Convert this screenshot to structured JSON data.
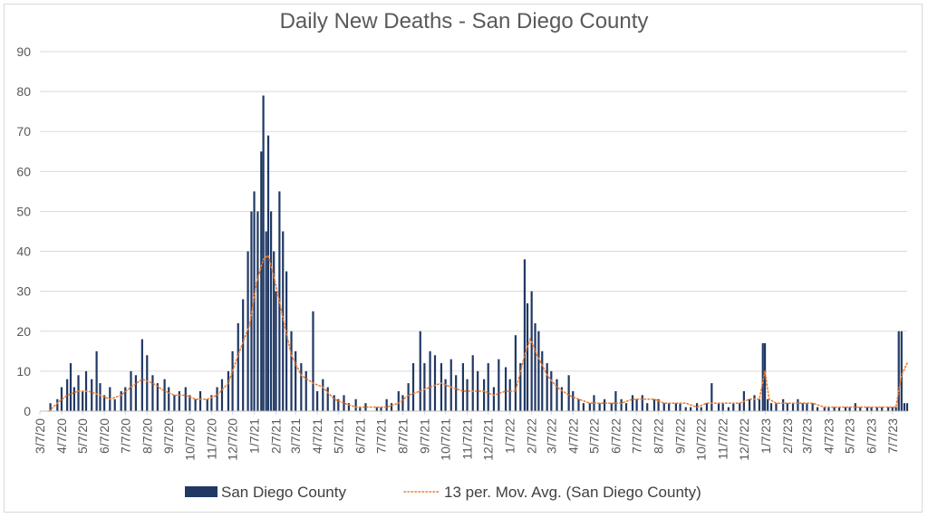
{
  "chart_data": {
    "type": "bar",
    "title": "Daily New Deaths - San Diego County",
    "ylim": [
      0,
      90
    ],
    "yticks": [
      0,
      10,
      20,
      30,
      40,
      50,
      60,
      70,
      80,
      90
    ],
    "x_start": "3/7/20",
    "x_end": "7/28/23",
    "x_tick_labels": [
      "3/7/20",
      "4/7/20",
      "5/7/20",
      "6/7/20",
      "7/7/20",
      "8/7/20",
      "9/7/20",
      "10/7/20",
      "11/7/20",
      "12/7/20",
      "1/7/21",
      "2/7/21",
      "3/7/21",
      "4/7/21",
      "5/7/21",
      "6/7/21",
      "7/7/21",
      "8/7/21",
      "9/7/21",
      "10/7/21",
      "11/7/21",
      "12/7/21",
      "1/7/22",
      "2/7/22",
      "3/7/22",
      "4/7/22",
      "5/7/22",
      "6/7/22",
      "7/7/22",
      "8/7/22",
      "9/7/22",
      "10/7/22",
      "11/7/22",
      "12/7/22",
      "1/7/23",
      "2/7/23",
      "3/7/23",
      "4/7/23",
      "5/7/23",
      "6/7/23",
      "7/7/23"
    ],
    "grid": true,
    "legend_position": "bottom",
    "colors": {
      "bars": "#203864",
      "moving_average": "#ED7D31",
      "grid": "#d9d9d9",
      "text": "#595959"
    },
    "series": [
      {
        "name": "San Diego County",
        "type": "bar",
        "points": [
          [
            "3/7/20",
            0
          ],
          [
            "3/22/20",
            2
          ],
          [
            "4/1/20",
            3
          ],
          [
            "4/7/20",
            6
          ],
          [
            "4/15/20",
            8
          ],
          [
            "4/20/20",
            12
          ],
          [
            "4/25/20",
            6
          ],
          [
            "5/1/20",
            9
          ],
          [
            "5/7/20",
            5
          ],
          [
            "5/12/20",
            10
          ],
          [
            "5/20/20",
            8
          ],
          [
            "5/27/20",
            15
          ],
          [
            "6/1/20",
            7
          ],
          [
            "6/7/20",
            4
          ],
          [
            "6/15/20",
            6
          ],
          [
            "6/22/20",
            3
          ],
          [
            "7/1/20",
            5
          ],
          [
            "7/7/20",
            6
          ],
          [
            "7/15/20",
            10
          ],
          [
            "7/22/20",
            9
          ],
          [
            "7/31/20",
            18
          ],
          [
            "8/7/20",
            14
          ],
          [
            "8/15/20",
            9
          ],
          [
            "8/22/20",
            7
          ],
          [
            "9/1/20",
            8
          ],
          [
            "9/7/20",
            6
          ],
          [
            "9/15/20",
            4
          ],
          [
            "9/22/20",
            5
          ],
          [
            "10/1/20",
            6
          ],
          [
            "10/7/20",
            4
          ],
          [
            "10/15/20",
            3
          ],
          [
            "10/22/20",
            5
          ],
          [
            "11/1/20",
            3
          ],
          [
            "11/7/20",
            4
          ],
          [
            "11/15/20",
            6
          ],
          [
            "11/22/20",
            8
          ],
          [
            "12/1/20",
            10
          ],
          [
            "12/7/20",
            15
          ],
          [
            "12/15/20",
            22
          ],
          [
            "12/22/20",
            28
          ],
          [
            "12/29/20",
            40
          ],
          [
            "1/3/21",
            50
          ],
          [
            "1/7/21",
            55
          ],
          [
            "1/12/21",
            50
          ],
          [
            "1/17/21",
            65
          ],
          [
            "1/20/21",
            79
          ],
          [
            "1/24/21",
            45
          ],
          [
            "1/27/21",
            69
          ],
          [
            "1/31/21",
            50
          ],
          [
            "2/4/21",
            40
          ],
          [
            "2/7/21",
            30
          ],
          [
            "2/12/21",
            55
          ],
          [
            "2/17/21",
            45
          ],
          [
            "2/22/21",
            35
          ],
          [
            "3/1/21",
            20
          ],
          [
            "3/7/21",
            15
          ],
          [
            "3/15/21",
            12
          ],
          [
            "3/22/21",
            10
          ],
          [
            "4/1/21",
            25
          ],
          [
            "4/7/21",
            5
          ],
          [
            "4/15/21",
            8
          ],
          [
            "4/22/21",
            6
          ],
          [
            "5/1/21",
            4
          ],
          [
            "5/7/21",
            3
          ],
          [
            "5/15/21",
            4
          ],
          [
            "5/22/21",
            2
          ],
          [
            "6/1/21",
            3
          ],
          [
            "6/7/21",
            1
          ],
          [
            "6/15/21",
            2
          ],
          [
            "6/22/21",
            0
          ],
          [
            "7/1/21",
            1
          ],
          [
            "7/7/21",
            1
          ],
          [
            "7/15/21",
            3
          ],
          [
            "7/22/21",
            2
          ],
          [
            "8/1/21",
            5
          ],
          [
            "8/7/21",
            4
          ],
          [
            "8/15/21",
            7
          ],
          [
            "8/22/21",
            12
          ],
          [
            "9/1/21",
            20
          ],
          [
            "9/7/21",
            12
          ],
          [
            "9/15/21",
            15
          ],
          [
            "9/22/21",
            14
          ],
          [
            "10/1/21",
            12
          ],
          [
            "10/7/21",
            8
          ],
          [
            "10/15/21",
            13
          ],
          [
            "10/22/21",
            9
          ],
          [
            "11/1/21",
            12
          ],
          [
            "11/7/21",
            8
          ],
          [
            "11/15/21",
            14
          ],
          [
            "11/22/21",
            10
          ],
          [
            "12/1/21",
            8
          ],
          [
            "12/7/21",
            12
          ],
          [
            "12/15/21",
            6
          ],
          [
            "12/22/21",
            13
          ],
          [
            "1/1/22",
            11
          ],
          [
            "1/7/22",
            8
          ],
          [
            "1/15/22",
            19
          ],
          [
            "1/22/22",
            12
          ],
          [
            "1/28/22",
            38
          ],
          [
            "2/1/22",
            27
          ],
          [
            "2/7/22",
            30
          ],
          [
            "2/12/22",
            22
          ],
          [
            "2/17/22",
            20
          ],
          [
            "2/22/22",
            15
          ],
          [
            "3/1/22",
            12
          ],
          [
            "3/7/22",
            10
          ],
          [
            "3/15/22",
            8
          ],
          [
            "3/22/22",
            6
          ],
          [
            "4/1/22",
            9
          ],
          [
            "4/7/22",
            5
          ],
          [
            "4/15/22",
            3
          ],
          [
            "4/22/22",
            2
          ],
          [
            "5/1/22",
            2
          ],
          [
            "5/7/22",
            4
          ],
          [
            "5/15/22",
            2
          ],
          [
            "5/22/22",
            3
          ],
          [
            "6/1/22",
            2
          ],
          [
            "6/7/22",
            5
          ],
          [
            "6/15/22",
            3
          ],
          [
            "6/22/22",
            2
          ],
          [
            "7/1/22",
            4
          ],
          [
            "7/7/22",
            3
          ],
          [
            "7/15/22",
            4
          ],
          [
            "7/22/22",
            2
          ],
          [
            "8/1/22",
            3
          ],
          [
            "8/7/22",
            3
          ],
          [
            "8/15/22",
            2
          ],
          [
            "8/22/22",
            2
          ],
          [
            "9/1/22",
            2
          ],
          [
            "9/7/22",
            2
          ],
          [
            "9/15/22",
            1
          ],
          [
            "9/22/22",
            1
          ],
          [
            "10/1/22",
            2
          ],
          [
            "10/7/22",
            1
          ],
          [
            "10/15/22",
            2
          ],
          [
            "10/22/22",
            7
          ],
          [
            "11/1/22",
            2
          ],
          [
            "11/7/22",
            2
          ],
          [
            "11/15/22",
            1
          ],
          [
            "11/22/22",
            2
          ],
          [
            "12/1/22",
            2
          ],
          [
            "12/7/22",
            5
          ],
          [
            "12/15/22",
            3
          ],
          [
            "12/22/22",
            4
          ],
          [
            "12/29/22",
            3
          ],
          [
            "1/3/23",
            17
          ],
          [
            "1/6/23",
            17
          ],
          [
            "1/10/23",
            3
          ],
          [
            "1/15/23",
            2
          ],
          [
            "1/22/23",
            2
          ],
          [
            "2/1/23",
            3
          ],
          [
            "2/7/23",
            2
          ],
          [
            "2/15/23",
            2
          ],
          [
            "2/22/23",
            3
          ],
          [
            "3/1/23",
            2
          ],
          [
            "3/7/23",
            2
          ],
          [
            "3/15/23",
            2
          ],
          [
            "3/22/23",
            1
          ],
          [
            "4/1/23",
            1
          ],
          [
            "4/7/23",
            1
          ],
          [
            "4/15/23",
            1
          ],
          [
            "4/22/23",
            1
          ],
          [
            "5/1/23",
            1
          ],
          [
            "5/7/23",
            1
          ],
          [
            "5/15/23",
            2
          ],
          [
            "5/22/23",
            1
          ],
          [
            "6/1/23",
            1
          ],
          [
            "6/7/23",
            1
          ],
          [
            "6/15/23",
            1
          ],
          [
            "6/22/23",
            1
          ],
          [
            "7/1/23",
            1
          ],
          [
            "7/7/23",
            1
          ],
          [
            "7/12/23",
            1
          ],
          [
            "7/16/23",
            20
          ],
          [
            "7/20/23",
            20
          ],
          [
            "7/24/23",
            2
          ],
          [
            "7/28/23",
            2
          ]
        ]
      },
      {
        "name": "13 per. Mov. Avg. (San Diego County)",
        "type": "line",
        "points": [
          [
            "3/20/20",
            0
          ],
          [
            "4/1/20",
            2
          ],
          [
            "4/15/20",
            4
          ],
          [
            "5/1/20",
            5
          ],
          [
            "5/15/20",
            5
          ],
          [
            "6/1/20",
            4
          ],
          [
            "6/15/20",
            3
          ],
          [
            "7/1/20",
            4
          ],
          [
            "7/15/20",
            6
          ],
          [
            "7/31/20",
            8
          ],
          [
            "8/15/20",
            7
          ],
          [
            "9/1/20",
            5
          ],
          [
            "9/15/20",
            4
          ],
          [
            "10/1/20",
            4
          ],
          [
            "10/15/20",
            3
          ],
          [
            "11/1/20",
            3
          ],
          [
            "11/15/20",
            4
          ],
          [
            "12/1/20",
            7
          ],
          [
            "12/15/20",
            14
          ],
          [
            "1/1/21",
            22
          ],
          [
            "1/10/21",
            32
          ],
          [
            "1/20/21",
            38
          ],
          [
            "1/27/21",
            39
          ],
          [
            "2/5/21",
            33
          ],
          [
            "2/15/21",
            25
          ],
          [
            "3/1/21",
            14
          ],
          [
            "3/15/21",
            9
          ],
          [
            "4/1/21",
            7
          ],
          [
            "4/15/21",
            6
          ],
          [
            "5/1/21",
            3
          ],
          [
            "5/15/21",
            2
          ],
          [
            "6/1/21",
            1
          ],
          [
            "6/15/21",
            1
          ],
          [
            "7/1/21",
            1
          ],
          [
            "7/15/21",
            1
          ],
          [
            "8/1/21",
            2
          ],
          [
            "8/15/21",
            4
          ],
          [
            "9/1/21",
            5
          ],
          [
            "9/15/21",
            6
          ],
          [
            "10/1/21",
            7
          ],
          [
            "10/15/21",
            6
          ],
          [
            "11/1/21",
            5
          ],
          [
            "11/15/21",
            5
          ],
          [
            "12/1/21",
            5
          ],
          [
            "12/15/21",
            4
          ],
          [
            "1/1/22",
            5
          ],
          [
            "1/15/22",
            5
          ],
          [
            "1/28/22",
            14
          ],
          [
            "2/5/22",
            18
          ],
          [
            "2/15/22",
            14
          ],
          [
            "3/1/22",
            9
          ],
          [
            "3/15/22",
            6
          ],
          [
            "4/1/22",
            4
          ],
          [
            "4/15/22",
            3
          ],
          [
            "5/1/22",
            2
          ],
          [
            "5/15/22",
            2
          ],
          [
            "6/1/22",
            2
          ],
          [
            "6/15/22",
            2
          ],
          [
            "7/1/22",
            3
          ],
          [
            "7/15/22",
            3
          ],
          [
            "8/1/22",
            3
          ],
          [
            "8/15/22",
            2
          ],
          [
            "9/1/22",
            2
          ],
          [
            "9/15/22",
            2
          ],
          [
            "10/1/22",
            1
          ],
          [
            "10/15/22",
            2
          ],
          [
            "11/1/22",
            2
          ],
          [
            "11/15/22",
            2
          ],
          [
            "12/1/22",
            2
          ],
          [
            "12/15/22",
            3
          ],
          [
            "12/29/22",
            3
          ],
          [
            "1/6/23",
            10
          ],
          [
            "1/12/23",
            3
          ],
          [
            "1/22/23",
            2
          ],
          [
            "2/7/23",
            2
          ],
          [
            "3/1/23",
            2
          ],
          [
            "3/15/23",
            2
          ],
          [
            "4/1/23",
            1
          ],
          [
            "4/15/23",
            1
          ],
          [
            "5/1/23",
            1
          ],
          [
            "5/15/23",
            1
          ],
          [
            "6/1/23",
            1
          ],
          [
            "6/15/23",
            1
          ],
          [
            "7/1/23",
            1
          ],
          [
            "7/12/23",
            1
          ],
          [
            "7/20/23",
            9
          ],
          [
            "7/28/23",
            12
          ]
        ]
      }
    ]
  }
}
